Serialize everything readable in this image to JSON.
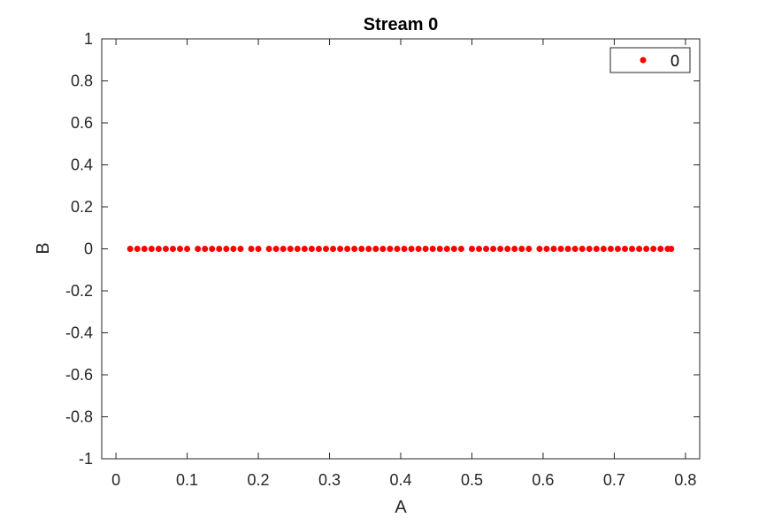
{
  "chart_data": {
    "type": "scatter",
    "title": "Stream 0",
    "xlabel": "A",
    "ylabel": "B",
    "xlim": [
      -0.02,
      0.82
    ],
    "ylim": [
      -1,
      1
    ],
    "xticks": [
      0,
      0.1,
      0.2,
      0.3,
      0.4,
      0.5,
      0.6,
      0.7,
      0.8
    ],
    "xtick_labels": [
      "0",
      "0.1",
      "0.2",
      "0.3",
      "0.4",
      "0.5",
      "0.6",
      "0.7",
      "0.8"
    ],
    "yticks": [
      1,
      0.8,
      0.6,
      0.4,
      0.2,
      0,
      -0.2,
      -0.4,
      -0.6,
      -0.8,
      -1
    ],
    "ytick_labels": [
      "1",
      "0.8",
      "0.6",
      "0.4",
      "0.2",
      "0",
      "-0.2",
      "-0.4",
      "-0.6",
      "-0.8",
      "-1"
    ],
    "grid": false,
    "legend_position": "top-right",
    "series": [
      {
        "name": "0",
        "color": "#ff0000",
        "marker": "filled-circle",
        "points": [
          [
            0.02,
            0
          ],
          [
            0.03,
            0
          ],
          [
            0.04,
            0
          ],
          [
            0.05,
            0
          ],
          [
            0.06,
            0
          ],
          [
            0.07,
            0
          ],
          [
            0.08,
            0
          ],
          [
            0.09,
            0
          ],
          [
            0.1,
            0
          ],
          [
            0.115,
            0
          ],
          [
            0.125,
            0
          ],
          [
            0.135,
            0
          ],
          [
            0.145,
            0
          ],
          [
            0.155,
            0
          ],
          [
            0.165,
            0
          ],
          [
            0.175,
            0
          ],
          [
            0.19,
            0
          ],
          [
            0.2,
            0
          ],
          [
            0.215,
            0
          ],
          [
            0.225,
            0
          ],
          [
            0.235,
            0
          ],
          [
            0.245,
            0
          ],
          [
            0.255,
            0
          ],
          [
            0.265,
            0
          ],
          [
            0.275,
            0
          ],
          [
            0.285,
            0
          ],
          [
            0.295,
            0
          ],
          [
            0.305,
            0
          ],
          [
            0.315,
            0
          ],
          [
            0.325,
            0
          ],
          [
            0.335,
            0
          ],
          [
            0.345,
            0
          ],
          [
            0.355,
            0
          ],
          [
            0.365,
            0
          ],
          [
            0.375,
            0
          ],
          [
            0.385,
            0
          ],
          [
            0.395,
            0
          ],
          [
            0.405,
            0
          ],
          [
            0.415,
            0
          ],
          [
            0.425,
            0
          ],
          [
            0.435,
            0
          ],
          [
            0.445,
            0
          ],
          [
            0.455,
            0
          ],
          [
            0.465,
            0
          ],
          [
            0.475,
            0
          ],
          [
            0.485,
            0
          ],
          [
            0.5,
            0
          ],
          [
            0.51,
            0
          ],
          [
            0.52,
            0
          ],
          [
            0.53,
            0
          ],
          [
            0.54,
            0
          ],
          [
            0.55,
            0
          ],
          [
            0.56,
            0
          ],
          [
            0.57,
            0
          ],
          [
            0.58,
            0
          ],
          [
            0.595,
            0
          ],
          [
            0.605,
            0
          ],
          [
            0.615,
            0
          ],
          [
            0.625,
            0
          ],
          [
            0.635,
            0
          ],
          [
            0.645,
            0
          ],
          [
            0.655,
            0
          ],
          [
            0.665,
            0
          ],
          [
            0.675,
            0
          ],
          [
            0.685,
            0
          ],
          [
            0.695,
            0
          ],
          [
            0.705,
            0
          ],
          [
            0.715,
            0
          ],
          [
            0.725,
            0
          ],
          [
            0.735,
            0
          ],
          [
            0.745,
            0
          ],
          [
            0.755,
            0
          ],
          [
            0.765,
            0
          ],
          [
            0.775,
            0
          ],
          [
            0.78,
            0
          ]
        ]
      }
    ]
  }
}
